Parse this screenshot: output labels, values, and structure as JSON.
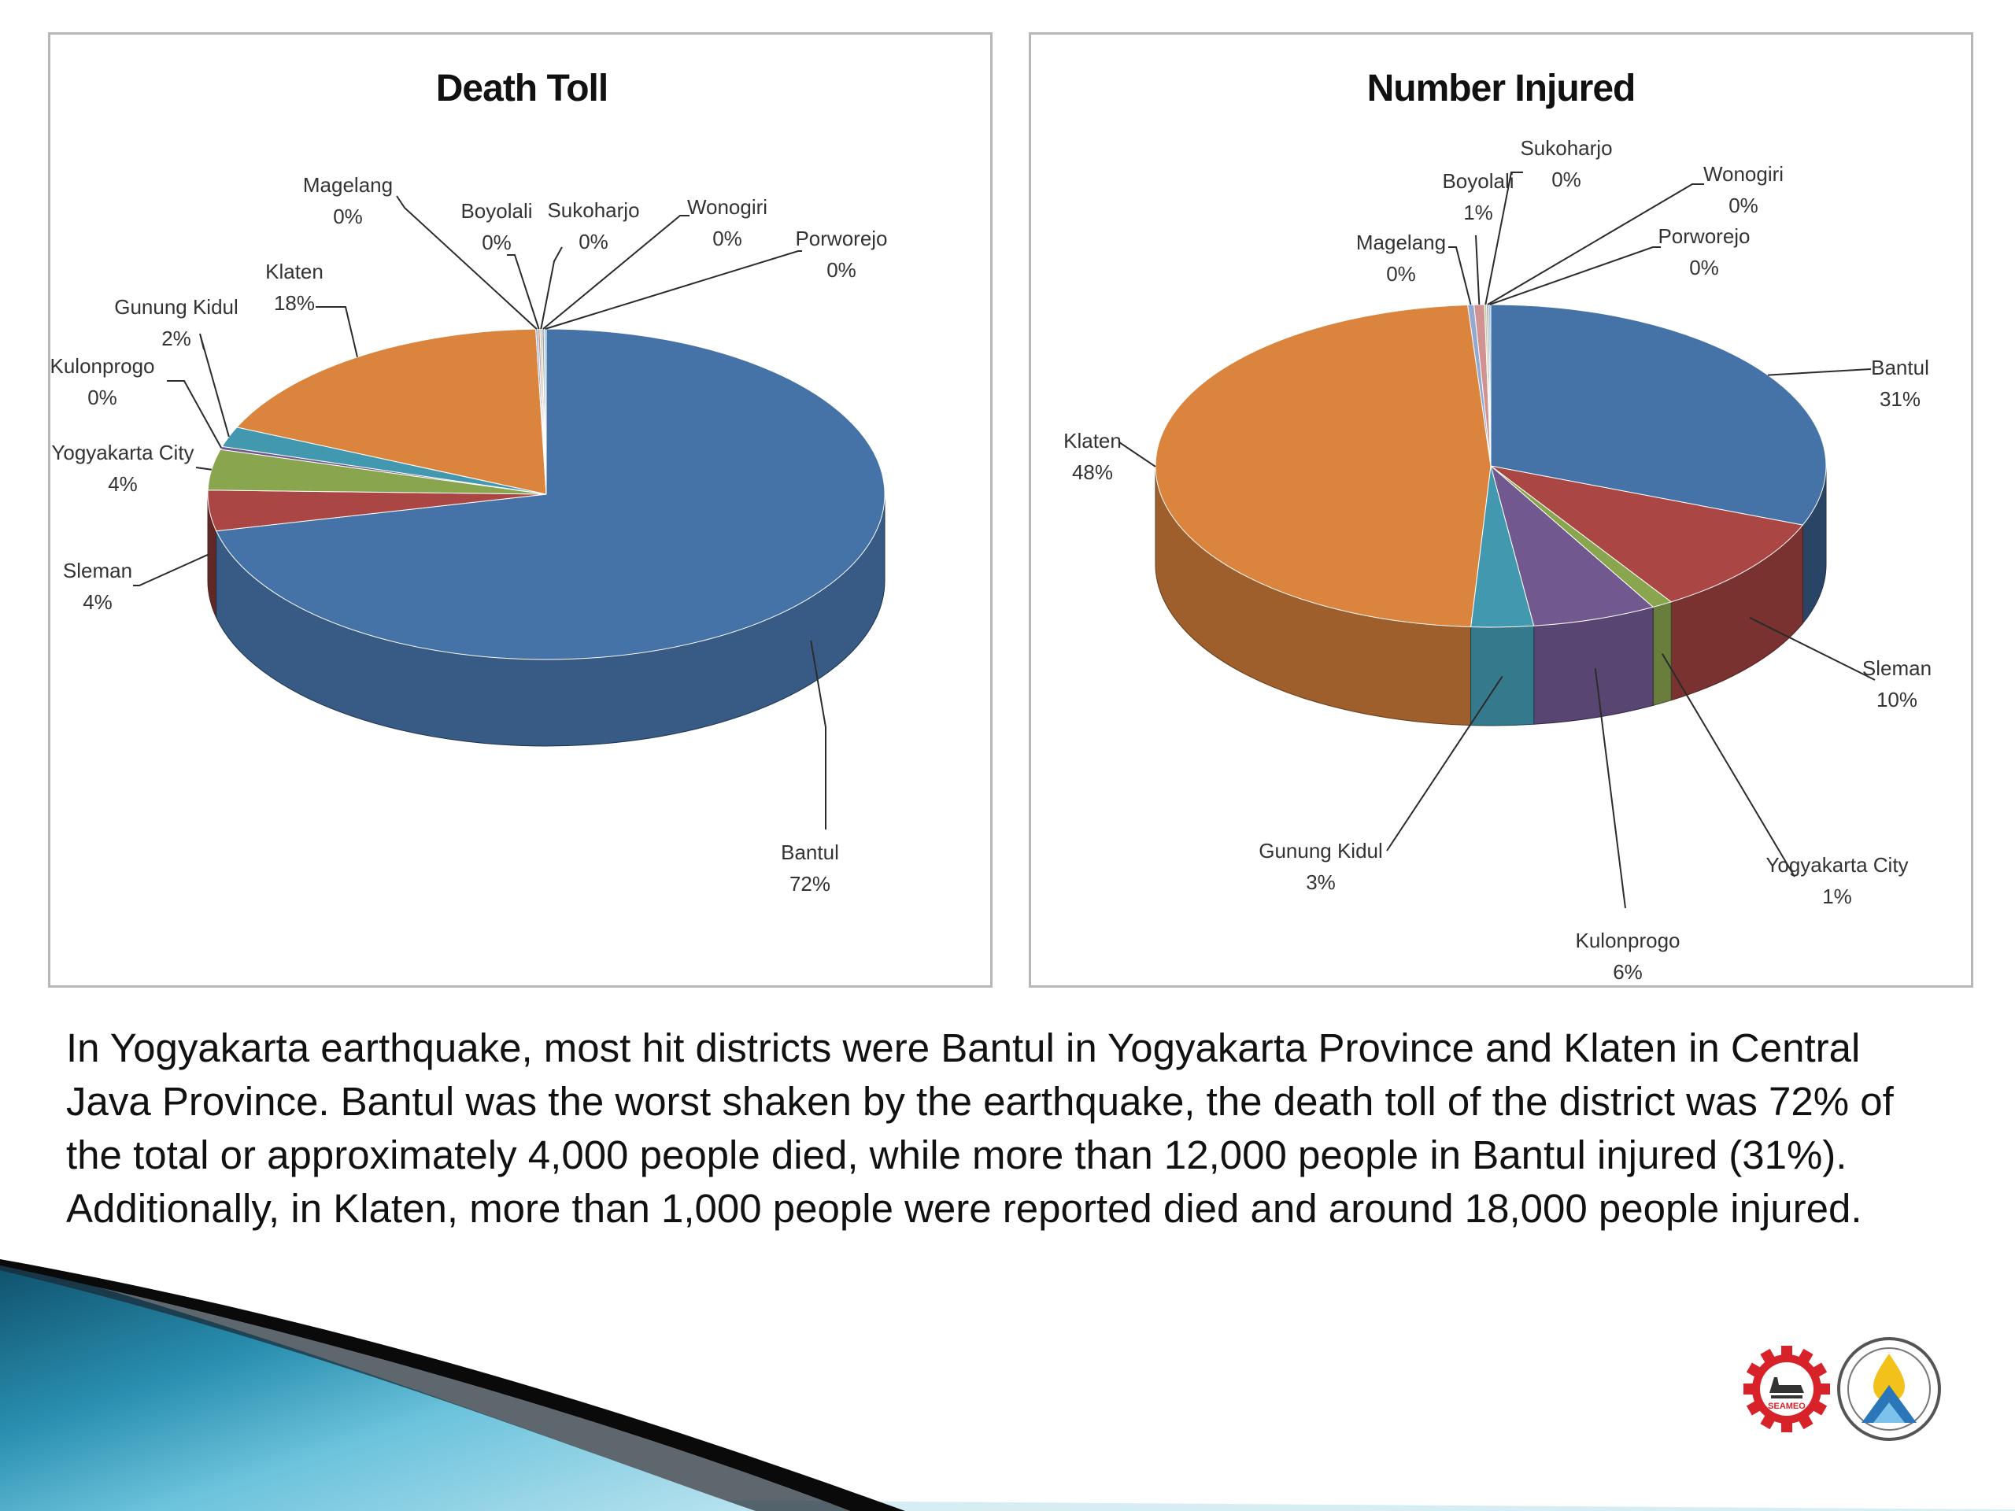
{
  "chart_data": [
    {
      "type": "pie",
      "title": "Death Toll",
      "slices": [
        {
          "name": "Bantul",
          "value": 72,
          "label": "72%",
          "color": "#4572A7"
        },
        {
          "name": "Sleman",
          "value": 4,
          "label": "4%",
          "color": "#AA4643"
        },
        {
          "name": "Yogyakarta City",
          "value": 4,
          "label": "4%",
          "color": "#89A54E"
        },
        {
          "name": "Kulonprogo",
          "value": 0.3,
          "label": "0%",
          "color": "#71588F"
        },
        {
          "name": "Gunung Kidul",
          "value": 2,
          "label": "2%",
          "color": "#4198AF"
        },
        {
          "name": "Klaten",
          "value": 18,
          "label": "18%",
          "color": "#DB843D"
        },
        {
          "name": "Magelang",
          "value": 0.1,
          "label": "0%",
          "color": "#93A9CF"
        },
        {
          "name": "Boyolali",
          "value": 0.1,
          "label": "0%",
          "color": "#D19392"
        },
        {
          "name": "Sukoharjo",
          "value": 0.1,
          "label": "0%",
          "color": "#B9CD96"
        },
        {
          "name": "Wonogiri",
          "value": 0.1,
          "label": "0%",
          "color": "#A99BBD"
        },
        {
          "name": "Porworejo",
          "value": 0.1,
          "label": "0%",
          "color": "#91C3D5"
        }
      ]
    },
    {
      "type": "pie",
      "title": "Number Injured",
      "slices": [
        {
          "name": "Bantul",
          "value": 31,
          "label": "31%",
          "color": "#4572A7"
        },
        {
          "name": "Sleman",
          "value": 10,
          "label": "10%",
          "color": "#AA4643"
        },
        {
          "name": "Yogyakarta City",
          "value": 1,
          "label": "1%",
          "color": "#89A54E"
        },
        {
          "name": "Kulonprogo",
          "value": 6,
          "label": "6%",
          "color": "#71588F"
        },
        {
          "name": "Gunung Kidul",
          "value": 3,
          "label": "3%",
          "color": "#4198AF"
        },
        {
          "name": "Klaten",
          "value": 48,
          "label": "48%",
          "color": "#DB843D"
        },
        {
          "name": "Magelang",
          "value": 0.3,
          "label": "0%",
          "color": "#93A9CF"
        },
        {
          "name": "Boyolali",
          "value": 0.5,
          "label": "1%",
          "color": "#D19392"
        },
        {
          "name": "Sukoharjo",
          "value": 0.1,
          "label": "0%",
          "color": "#B9CD96"
        },
        {
          "name": "Wonogiri",
          "value": 0.1,
          "label": "0%",
          "color": "#A99BBD"
        },
        {
          "name": "Porworejo",
          "value": 0.1,
          "label": "0%",
          "color": "#91C3D5"
        }
      ]
    }
  ],
  "caption": "In Yogyakarta earthquake, most hit districts were Bantul in Yogyakarta Province and Klaten in Central Java Province. Bantul was the worst shaken by the earthquake, the death toll of the district was 72% of the total or approximately 4,000 people died, while more than 12,000 people in Bantul injured (31%). Additionally, in Klaten, more than 1,000 people were reported died and around 18,000 people injured.",
  "logos": {
    "left_logo_text": "SEAMEO",
    "right_logo_icon": "water-drop-mountain-icon"
  }
}
